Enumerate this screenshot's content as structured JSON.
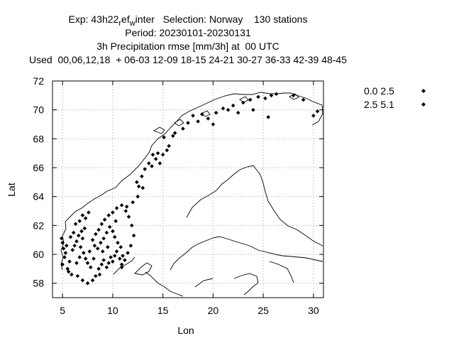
{
  "chart_data": {
    "type": "scatter",
    "title": {
      "exp_prefix": "Exp: 43h22",
      "exp_sub1": "r",
      "exp_mid": "ef",
      "exp_sub2": "w",
      "exp_suffix": "inter   Selection: Norway    130 stations",
      "period": "Period: 20230101-20230131",
      "parameter": "3h Precipitation rmse [mm/3h] at  00 UTC",
      "used": "Used  00,06,12,18  + 06-03 12-09 18-15 24-21 30-27 36-33 42-39 48-45"
    },
    "xlabel": "Lon",
    "ylabel": "Lat",
    "xlim": [
      4,
      31
    ],
    "ylim": [
      57,
      72
    ],
    "xticks": [
      5,
      10,
      15,
      20,
      25,
      30
    ],
    "yticks": [
      58,
      60,
      62,
      64,
      66,
      68,
      70,
      72
    ],
    "grid": true,
    "legend_position": "top-right",
    "series": [
      {
        "name": "0.0 2.5",
        "color": "#000000",
        "points": [
          [
            4.9,
            61.1
          ],
          [
            5.0,
            60.8
          ],
          [
            5.1,
            60.4
          ],
          [
            5.3,
            60.1
          ],
          [
            5.2,
            59.8
          ],
          [
            5.0,
            59.3
          ],
          [
            5.5,
            59.0
          ],
          [
            5.6,
            58.8
          ],
          [
            5.7,
            59.5
          ],
          [
            5.9,
            58.6
          ],
          [
            5.4,
            60.6
          ],
          [
            5.8,
            61.2
          ],
          [
            6.0,
            60.3
          ],
          [
            6.2,
            60.6
          ],
          [
            6.4,
            60.9
          ],
          [
            6.6,
            61.3
          ],
          [
            6.1,
            61.5
          ],
          [
            6.3,
            62.1
          ],
          [
            6.7,
            62.3
          ],
          [
            7.0,
            62.7
          ],
          [
            7.3,
            62.5
          ],
          [
            7.6,
            62.9
          ],
          [
            7.2,
            61.8
          ],
          [
            6.9,
            61.6
          ],
          [
            7.0,
            61.1
          ],
          [
            6.8,
            60.5
          ],
          [
            7.1,
            60.1
          ],
          [
            7.3,
            59.7
          ],
          [
            7.5,
            59.4
          ],
          [
            7.8,
            59.1
          ],
          [
            6.7,
            59.8
          ],
          [
            6.4,
            59.4
          ],
          [
            6.5,
            58.5
          ],
          [
            7.0,
            58.2
          ],
          [
            7.5,
            58.0
          ],
          [
            8.0,
            58.2
          ],
          [
            8.3,
            58.5
          ],
          [
            8.7,
            58.6
          ],
          [
            8.6,
            59.0
          ],
          [
            8.9,
            59.3
          ],
          [
            9.1,
            59.6
          ],
          [
            9.4,
            59.1
          ],
          [
            9.6,
            59.4
          ],
          [
            9.8,
            59.8
          ],
          [
            10.0,
            59.5
          ],
          [
            10.2,
            59.9
          ],
          [
            10.4,
            60.2
          ],
          [
            10.7,
            59.7
          ],
          [
            10.9,
            59.3
          ],
          [
            11.0,
            59.9
          ],
          [
            10.8,
            60.5
          ],
          [
            10.5,
            60.8
          ],
          [
            10.2,
            61.2
          ],
          [
            10.0,
            61.6
          ],
          [
            9.7,
            61.9
          ],
          [
            9.4,
            61.5
          ],
          [
            9.1,
            61.1
          ],
          [
            8.8,
            60.8
          ],
          [
            8.5,
            60.4
          ],
          [
            8.2,
            60.6
          ],
          [
            8.0,
            61.0
          ],
          [
            8.3,
            61.4
          ],
          [
            8.6,
            61.7
          ],
          [
            8.9,
            62.1
          ],
          [
            9.2,
            62.4
          ],
          [
            9.6,
            62.7
          ],
          [
            10.0,
            62.9
          ],
          [
            10.4,
            63.2
          ],
          [
            10.9,
            63.4
          ],
          [
            11.3,
            63.0
          ],
          [
            11.6,
            62.6
          ],
          [
            11.9,
            62.0
          ],
          [
            12.1,
            61.3
          ],
          [
            11.8,
            60.6
          ],
          [
            11.5,
            60.1
          ],
          [
            11.2,
            59.6
          ],
          [
            10.9,
            59.1
          ],
          [
            7.7,
            60.2
          ],
          [
            8.1,
            59.7
          ],
          [
            9.0,
            60.2
          ],
          [
            9.5,
            60.5
          ],
          [
            10.3,
            62.3
          ],
          [
            12.4,
            65.0
          ],
          [
            12.6,
            64.7
          ],
          [
            12.9,
            65.4
          ],
          [
            13.2,
            65.9
          ],
          [
            13.6,
            66.3
          ],
          [
            13.9,
            66.1
          ],
          [
            14.3,
            66.6
          ],
          [
            14.7,
            66.3
          ],
          [
            15.0,
            66.9
          ],
          [
            15.4,
            67.2
          ],
          [
            15.6,
            67.5
          ],
          [
            14.5,
            67.0
          ],
          [
            15.1,
            68.1
          ],
          [
            16.2,
            68.4
          ],
          [
            17.0,
            68.7
          ],
          [
            17.5,
            69.1
          ],
          [
            18.0,
            69.6
          ],
          [
            18.9,
            69.7
          ],
          [
            19.5,
            69.4
          ],
          [
            20.3,
            69.8
          ],
          [
            21.0,
            70.1
          ],
          [
            21.5,
            70.0
          ],
          [
            22.0,
            70.3
          ],
          [
            23.0,
            70.5
          ],
          [
            23.7,
            70.7
          ],
          [
            24.5,
            70.9
          ],
          [
            25.2,
            70.8
          ],
          [
            25.8,
            71.0
          ],
          [
            26.3,
            71.1
          ]
        ]
      },
      {
        "name": "2.5 5.1",
        "color": "#000000",
        "points": [
          [
            12.0,
            63.6
          ],
          [
            11.4,
            63.3
          ],
          [
            12.5,
            64.0
          ],
          [
            13.0,
            64.6
          ],
          [
            14.0,
            66.9
          ],
          [
            16.0,
            68.2
          ],
          [
            18.5,
            69.2
          ],
          [
            20.0,
            69.0
          ],
          [
            22.5,
            69.8
          ],
          [
            24.0,
            70.0
          ],
          [
            25.5,
            69.5
          ],
          [
            28.0,
            71.0
          ],
          [
            29.0,
            70.7
          ],
          [
            30.0,
            69.6
          ],
          [
            30.4,
            69.9
          ]
        ]
      }
    ]
  }
}
